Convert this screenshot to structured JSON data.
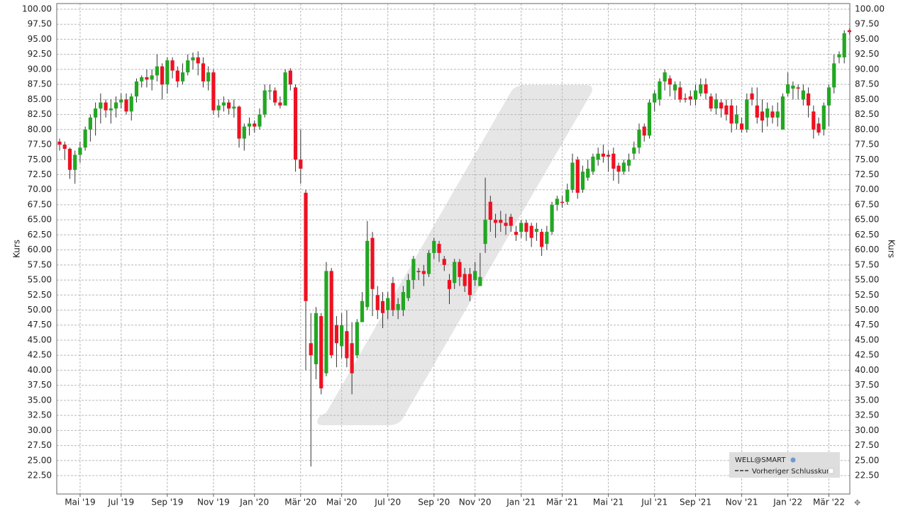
{
  "chart_data": {
    "type": "candlestick",
    "y_label": "Kurs",
    "ylim": [
      19.44,
      100.94
    ],
    "yticks": [
      {
        "value": 22.5,
        "label": "22.50"
      },
      {
        "value": 25,
        "label": "25.00"
      },
      {
        "value": 27.5,
        "label": "27.50"
      },
      {
        "value": 30,
        "label": "30.00"
      },
      {
        "value": 32.5,
        "label": "32.50"
      },
      {
        "value": 35,
        "label": "35.00"
      },
      {
        "value": 37.5,
        "label": "37.50"
      },
      {
        "value": 40,
        "label": "40.00"
      },
      {
        "value": 42.5,
        "label": "42.50"
      },
      {
        "value": 45,
        "label": "45.00"
      },
      {
        "value": 47.5,
        "label": "47.50"
      },
      {
        "value": 50,
        "label": "50.00"
      },
      {
        "value": 52.5,
        "label": "52.50"
      },
      {
        "value": 55,
        "label": "55.00"
      },
      {
        "value": 57.5,
        "label": "57.50"
      },
      {
        "value": 60,
        "label": "60.00"
      },
      {
        "value": 62.5,
        "label": "62.50"
      },
      {
        "value": 65,
        "label": "65.00"
      },
      {
        "value": 67.5,
        "label": "67.50"
      },
      {
        "value": 70,
        "label": "70.00"
      },
      {
        "value": 72.5,
        "label": "72.50"
      },
      {
        "value": 75,
        "label": "75.00"
      },
      {
        "value": 77.5,
        "label": "77.50"
      },
      {
        "value": 80,
        "label": "80.00"
      },
      {
        "value": 82.5,
        "label": "82.50"
      },
      {
        "value": 85,
        "label": "85.00"
      },
      {
        "value": 87.5,
        "label": "87.50"
      },
      {
        "value": 90,
        "label": "90.00"
      },
      {
        "value": 92.5,
        "label": "92.50"
      },
      {
        "value": 95,
        "label": "95.00"
      },
      {
        "value": 97.5,
        "label": "97.50"
      },
      {
        "value": 100,
        "label": "100.00"
      }
    ],
    "grid": true,
    "up_color": "#22a722",
    "down_color": "#ee1122",
    "reference_line_label": "Vorheriger Schlusskurs",
    "categories": [
      null,
      null,
      null,
      null,
      "Mai '19",
      null,
      null,
      null,
      null,
      null,
      null,
      null,
      "Jul '19",
      null,
      null,
      null,
      null,
      null,
      null,
      null,
      null,
      "Sep '19",
      null,
      null,
      null,
      null,
      null,
      null,
      null,
      null,
      "Nov '19",
      null,
      null,
      null,
      null,
      null,
      null,
      null,
      "Jan '20",
      null,
      null,
      null,
      null,
      null,
      null,
      null,
      null,
      "Mär '20",
      null,
      null,
      null,
      null,
      null,
      null,
      null,
      "Mai '20",
      null,
      null,
      null,
      null,
      null,
      null,
      null,
      null,
      "Jul '20",
      null,
      null,
      null,
      null,
      null,
      null,
      null,
      null,
      "Sep '20",
      null,
      null,
      null,
      null,
      null,
      null,
      null,
      "Nov '20",
      null,
      null,
      null,
      null,
      null,
      null,
      null,
      null,
      "Jan '21",
      null,
      null,
      null,
      null,
      null,
      null,
      null,
      "Mär '21",
      null,
      null,
      null,
      null,
      null,
      null,
      null,
      null,
      "Mai '21",
      null,
      null,
      null,
      null,
      null,
      null,
      null,
      null,
      "Jul '21",
      null,
      null,
      null,
      null,
      null,
      null,
      null,
      "Sep '21",
      null,
      null,
      null,
      null,
      null,
      null,
      null,
      null,
      "Nov '21",
      null,
      null,
      null,
      null,
      null,
      null,
      null,
      null,
      "Jan '22",
      null,
      null,
      null,
      null,
      null,
      null,
      null,
      "Mär '22",
      null,
      null,
      null,
      null
    ],
    "series": [
      {
        "name": "WELL@SMART",
        "open": [
          78,
          77.5,
          76.8,
          73.3,
          75.8,
          77,
          80,
          82,
          83.5,
          84.5,
          83.2,
          83.5,
          84.5,
          85,
          83,
          85.5,
          88,
          88.7,
          88.3,
          89,
          90.5,
          87.5,
          91.5,
          89.8,
          88,
          89.5,
          91.5,
          92,
          91,
          88,
          89.5,
          83.2,
          84,
          84.5,
          83.5,
          83.8,
          78.5,
          80.5,
          81,
          80.5,
          82.5,
          86.5,
          86.5,
          84.5,
          84,
          89.8,
          87,
          75,
          69.5,
          44.5,
          41,
          49,
          39.5,
          56.5,
          47.5,
          44,
          46.5,
          44.5,
          42.5,
          48,
          50.5,
          62,
          52.5,
          51.5,
          50,
          54.5,
          50,
          50,
          52,
          55,
          56.5,
          56.5,
          56,
          59.5,
          61,
          58.5,
          55,
          54.5,
          58,
          56,
          56,
          55,
          54,
          61,
          68,
          65,
          65,
          64.5,
          65.5,
          63,
          63,
          64.5,
          64,
          63,
          63,
          61,
          63,
          67.5,
          68,
          68,
          70,
          75,
          70,
          72,
          73,
          75,
          76,
          75.8,
          76,
          74,
          73,
          74,
          76,
          77,
          80.5,
          79,
          84.5,
          85,
          88,
          88.5,
          86.5,
          87,
          85.2,
          85.5,
          85,
          86,
          87.5,
          85.5,
          83.5,
          84.5,
          84,
          84,
          81,
          81,
          80,
          86,
          84,
          83,
          82,
          83,
          82,
          80,
          86,
          86.8,
          87,
          85,
          86,
          83,
          81,
          80,
          84,
          87,
          92,
          92,
          96.5
        ],
        "high": [
          78.5,
          78,
          77,
          76.5,
          78,
          80.5,
          82.5,
          84.5,
          86,
          85,
          85,
          85.5,
          86,
          86,
          86,
          88.5,
          89,
          90,
          90,
          92.5,
          91,
          92,
          92,
          90.5,
          91,
          92.5,
          92.8,
          93,
          92,
          90.5,
          90,
          85,
          85.5,
          85,
          85,
          84,
          81,
          82,
          81.5,
          83.5,
          87.5,
          87.5,
          87,
          85.5,
          90,
          90.2,
          87.5,
          80,
          70,
          49.5,
          50.5,
          49.5,
          58,
          57,
          49,
          49.5,
          50,
          48,
          48.5,
          53,
          64.8,
          63,
          54,
          53,
          53,
          55.5,
          52,
          54,
          56,
          59,
          57,
          57.5,
          60,
          62,
          61.5,
          59,
          56,
          58.5,
          58.5,
          57,
          57,
          58,
          59.5,
          72,
          69,
          66,
          66.5,
          66,
          66,
          64,
          65,
          65,
          64.5,
          64.5,
          63.5,
          64,
          68,
          69,
          69,
          71,
          76,
          75.5,
          74,
          75,
          76,
          77,
          77.5,
          76.5,
          77,
          74.5,
          75,
          76,
          78,
          81,
          81,
          85,
          86.5,
          88.5,
          90,
          89,
          88,
          88,
          86,
          86.5,
          87.5,
          88.5,
          88.5,
          86,
          86,
          85,
          85,
          85,
          84,
          82,
          86,
          87,
          87,
          85,
          84.5,
          84,
          84.5,
          86,
          89.5,
          88,
          87.5,
          87.5,
          87,
          84,
          82,
          84.5,
          87.5,
          92.5,
          93,
          96.5,
          96.8
        ],
        "low": [
          76.5,
          75,
          71.8,
          71,
          74.5,
          76.5,
          78,
          79,
          81,
          82,
          81,
          82,
          83.5,
          82.5,
          81.5,
          84.5,
          87,
          87,
          86.5,
          88,
          85,
          86,
          88.5,
          87,
          87.5,
          89,
          90,
          89,
          87,
          86.5,
          82.5,
          82,
          83,
          82.5,
          82,
          77,
          76.5,
          79,
          79.5,
          80,
          82,
          85,
          84,
          83.5,
          84,
          86.5,
          73,
          71,
          40,
          24,
          38.5,
          36,
          39,
          42,
          40.5,
          42,
          40.5,
          36,
          42,
          48,
          50,
          49,
          48.5,
          47,
          48.5,
          49,
          48.5,
          49,
          51.5,
          53.5,
          55,
          54,
          55.5,
          58.5,
          58,
          56.5,
          51,
          53.5,
          54,
          53,
          51.5,
          54,
          54,
          59.5,
          63,
          62,
          63,
          62.5,
          63,
          61.5,
          62,
          61.5,
          60.5,
          61.5,
          59,
          60,
          62.5,
          66.5,
          67,
          67.5,
          69.5,
          68.5,
          69.5,
          71.5,
          72.5,
          74,
          74.5,
          73,
          71.5,
          71,
          72.5,
          73,
          75,
          76,
          78,
          78.5,
          83,
          84,
          86.5,
          85.5,
          85,
          84.5,
          84.5,
          84,
          84,
          85.5,
          85,
          83,
          82.5,
          82,
          81.5,
          79.5,
          80,
          79.5,
          79.5,
          84,
          81,
          79.5,
          80.5,
          81,
          80.5,
          80,
          85.5,
          85,
          85,
          84,
          82,
          78.5,
          79,
          79,
          80.5,
          86,
          91,
          91,
          95.8
        ],
        "close": [
          77.5,
          76.8,
          73.3,
          75.8,
          77,
          80,
          82,
          83.5,
          84.5,
          83.2,
          83.5,
          84.5,
          85,
          83,
          85.5,
          88,
          88.7,
          88.3,
          89,
          90.5,
          87.5,
          91.5,
          89.8,
          88,
          89.5,
          91.5,
          92,
          91,
          88,
          89.5,
          83.2,
          84,
          84.5,
          83.5,
          83.8,
          78.5,
          80.5,
          81,
          80.5,
          82.5,
          86.5,
          86.5,
          84.5,
          84,
          89.5,
          87.5,
          75,
          73.5,
          51.5,
          42.5,
          49.5,
          37,
          56.5,
          42.5,
          44.5,
          47.5,
          42,
          39.5,
          48,
          51.5,
          61.5,
          53.5,
          50,
          49.5,
          52,
          50,
          51,
          53,
          55,
          58.5,
          56.3,
          56,
          59.5,
          61.5,
          59.5,
          57.5,
          53.5,
          58,
          55.5,
          54,
          52.5,
          56.5,
          55.5,
          65,
          65,
          64.5,
          64.5,
          64,
          64,
          62.5,
          64.5,
          63,
          62,
          63.5,
          60.5,
          63,
          67.5,
          68.5,
          67.8,
          70,
          74.5,
          69.5,
          73,
          73.5,
          75.5,
          76,
          75.5,
          75.5,
          73.5,
          73,
          74.5,
          75,
          77,
          80,
          79,
          84.5,
          86,
          88,
          89.5,
          87.5,
          87.5,
          85,
          85,
          85,
          86.5,
          87.5,
          86,
          83.5,
          85,
          83.5,
          82.5,
          81,
          82.5,
          80,
          85,
          85,
          82,
          81.5,
          83.5,
          82,
          83,
          85.5,
          87.5,
          87.3,
          86.8,
          86.5,
          84,
          80,
          79.5,
          84,
          87,
          91,
          92.5,
          96,
          96.2
        ]
      }
    ]
  }
}
